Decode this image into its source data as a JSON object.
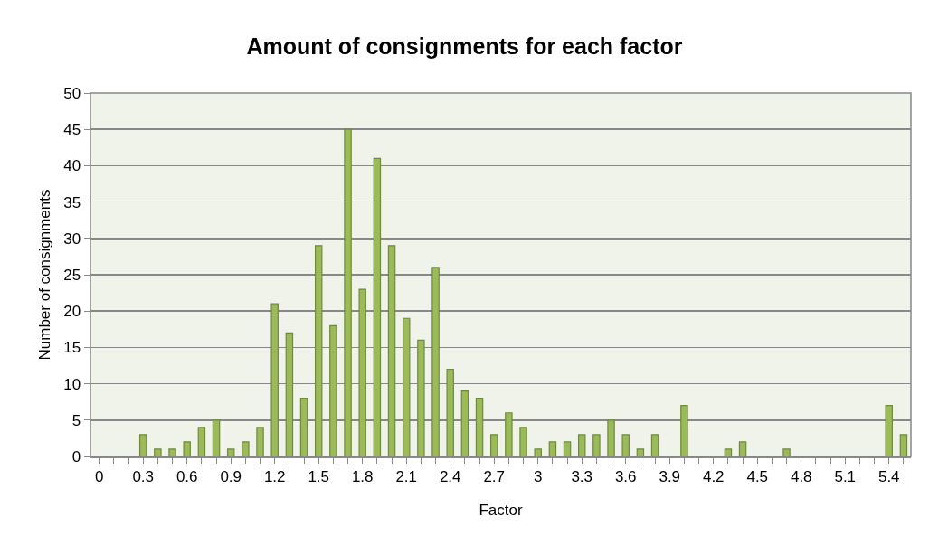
{
  "chart_data": {
    "type": "bar",
    "title": "Amount of consignments for each factor",
    "xlabel": "Factor",
    "ylabel": "Number of consignments",
    "categories": [
      "0",
      null,
      null,
      "0.3",
      null,
      null,
      "0.6",
      null,
      null,
      "0.9",
      null,
      null,
      "1.2",
      null,
      null,
      "1.5",
      null,
      null,
      "1.8",
      null,
      null,
      "2.1",
      null,
      null,
      "2.4",
      null,
      null,
      "2.7",
      null,
      null,
      "3",
      null,
      null,
      "3.3",
      null,
      null,
      "3.6",
      null,
      null,
      "3.9",
      null,
      null,
      "4.2",
      null,
      null,
      "4.5",
      null,
      null,
      "4.8",
      null,
      null,
      "5.1",
      null,
      null,
      "5.4",
      null
    ],
    "values": [
      0,
      0,
      0,
      3,
      1,
      1,
      2,
      4,
      5,
      1,
      2,
      4,
      21,
      17,
      8,
      29,
      18,
      45,
      23,
      41,
      29,
      19,
      16,
      26,
      12,
      9,
      8,
      3,
      6,
      4,
      1,
      2,
      2,
      3,
      3,
      5,
      3,
      1,
      3,
      0,
      7,
      0,
      0,
      1,
      2,
      0,
      0,
      1,
      0,
      0,
      0,
      0,
      0,
      0,
      7,
      3
    ],
    "color": "#9bbb59",
    "ylim": [
      0,
      50
    ],
    "yticks": [
      0,
      5,
      10,
      15,
      20,
      25,
      30,
      35,
      40,
      45,
      50
    ],
    "grid": "y"
  }
}
